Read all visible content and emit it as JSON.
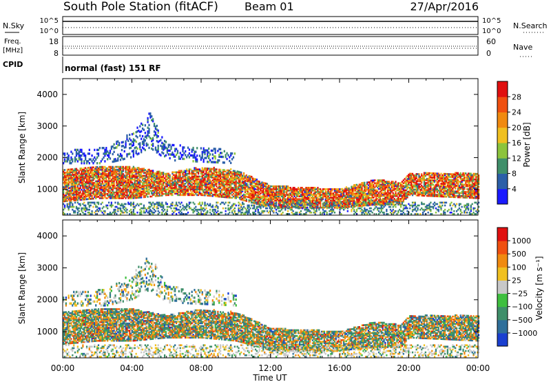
{
  "header": {
    "station": "South Pole Station (fitACF)",
    "beam": "Beam 01",
    "date": "27/Apr/2016"
  },
  "status_panel": {
    "left_top": "N.Sky",
    "left_mid_a": "Freq.",
    "left_mid_b": "[MHz]",
    "left_bottom": "CPID",
    "right_top": "N.Search",
    "right_mid": "Nave",
    "nsky_ticks": [
      "10^5",
      "10^0"
    ],
    "freq_ticks": [
      "18",
      "8"
    ],
    "nave_ticks": [
      "60",
      "0"
    ],
    "cpid_label": "normal (fast) 151 RF"
  },
  "chart_data": [
    {
      "type": "heatmap",
      "name": "power",
      "ylabel": "Slant Range [km]",
      "y_ticks": [
        "4000",
        "3000",
        "2000",
        "1000"
      ],
      "y_tick_values": [
        4000,
        3000,
        2000,
        1000
      ],
      "ylim": [
        180,
        4500
      ],
      "xlim": [
        0,
        24
      ],
      "colorbar": {
        "label": "Power [dB]",
        "tick_labels": [
          "28",
          "24",
          "20",
          "16",
          "12",
          "8",
          "4"
        ],
        "tick_values": [
          28,
          24,
          20,
          16,
          12,
          8,
          4
        ],
        "range": [
          0,
          32
        ],
        "colors": [
          "#1a1aff",
          "#2b5fa8",
          "#3f8f6a",
          "#8cc43c",
          "#f0c020",
          "#f08a10",
          "#f05010",
          "#e01010"
        ]
      }
    },
    {
      "type": "heatmap",
      "name": "velocity",
      "ylabel": "Slant Range [km]",
      "y_ticks": [
        "4000",
        "3000",
        "2000",
        "1000"
      ],
      "y_tick_values": [
        4000,
        3000,
        2000,
        1000
      ],
      "ylim": [
        180,
        4500
      ],
      "xlim": [
        0,
        24
      ],
      "colorbar": {
        "label": "Velocity [m s⁻¹]",
        "tick_labels": [
          "1000",
          "500",
          "100",
          "25",
          "−25",
          "−100",
          "−500",
          "−1000"
        ],
        "colors": [
          "#1a3fd0",
          "#2f6f9a",
          "#3f8f6a",
          "#3fbf3f",
          "#c8c8c8",
          "#f0c020",
          "#f08a10",
          "#f05010",
          "#e01010"
        ]
      }
    }
  ],
  "x_axis": {
    "tick_labels": [
      "00:00",
      "04:00",
      "08:00",
      "12:00",
      "16:00",
      "20:00",
      "00:00"
    ],
    "tick_values": [
      0,
      4,
      8,
      12,
      16,
      20,
      24
    ],
    "label": "Time UT"
  }
}
